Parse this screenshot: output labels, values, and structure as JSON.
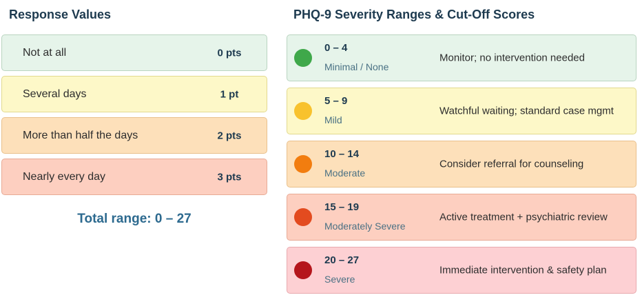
{
  "left": {
    "title": "Response Values",
    "responses": [
      {
        "label": "Not at all",
        "points": "0 pts",
        "bg": "#e6f4ea",
        "border": "#b9d4c0"
      },
      {
        "label": "Several days",
        "points": "1 pt",
        "bg": "#fdf8c8",
        "border": "#e2d98e"
      },
      {
        "label": "More than half the days",
        "points": "2 pts",
        "bg": "#fde0ba",
        "border": "#e9c08b"
      },
      {
        "label": "Nearly every day",
        "points": "3 pts",
        "bg": "#fdcfc0",
        "border": "#e8aa95"
      }
    ],
    "total_range": "Total range: 0 – 27"
  },
  "right": {
    "title": "PHQ-9 Severity Ranges & Cut-Off Scores",
    "ranges": [
      {
        "range": "0 – 4",
        "label": "Minimal / None",
        "action": "Monitor; no intervention needed",
        "bg": "#e6f4ea",
        "border": "#b9d4c0",
        "dot": "#3fa84a"
      },
      {
        "range": "5 – 9",
        "label": "Mild",
        "action": "Watchful waiting; standard case mgmt",
        "bg": "#fdf8c8",
        "border": "#e2d98e",
        "dot": "#f8c22d"
      },
      {
        "range": "10 – 14",
        "label": "Moderate",
        "action": "Consider referral for counseling",
        "bg": "#fde0ba",
        "border": "#e9c08b",
        "dot": "#f27d0f"
      },
      {
        "range": "15 – 19",
        "label": "Moderately Severe",
        "action": "Active treatment + psychiatric review",
        "bg": "#fdcfc0",
        "border": "#e8aa95",
        "dot": "#e34b1f"
      },
      {
        "range": "20 – 27",
        "label": "Severe",
        "action": "Immediate intervention & safety plan",
        "bg": "#fdd0d3",
        "border": "#e8a9ae",
        "dot": "#b5161c"
      }
    ]
  }
}
